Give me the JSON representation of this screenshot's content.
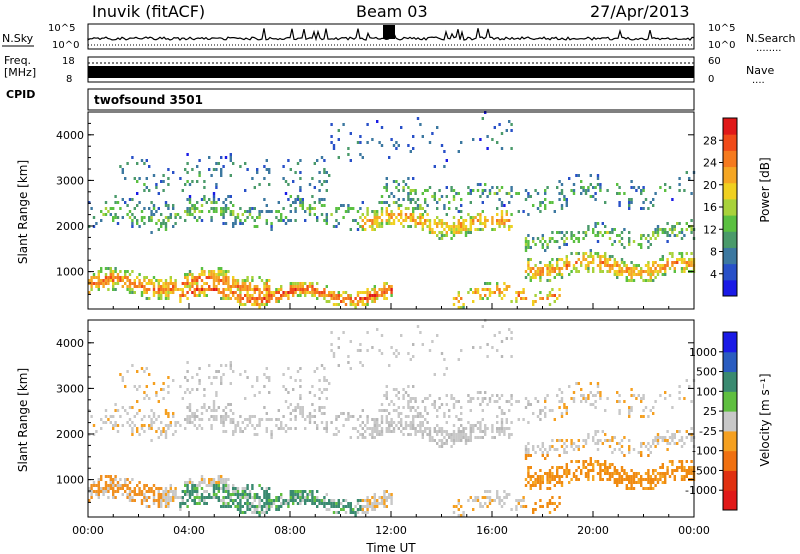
{
  "header": {
    "station": "Inuvik (fitACF)",
    "beam": "Beam 03",
    "date": "27/Apr/2013"
  },
  "side_labels": {
    "nsky": "N.Sky",
    "freq_line1": "Freq.",
    "freq_line2": "[MHz]",
    "cpid": "CPID",
    "nsearch": "N.Search",
    "nave": "Nave",
    "nsearch_dots": "........",
    "nave_dots": "....",
    "program": "twofsound 3501"
  },
  "chart_data": [
    {
      "type": "line",
      "name": "noise-panel",
      "left_ticks": [
        "10^5",
        "10^0"
      ],
      "right_ticks": [
        "10^5",
        "10^0"
      ]
    },
    {
      "type": "line",
      "name": "freq-panel",
      "left_ticks": [
        "18",
        "8"
      ],
      "right_ticks": [
        "60",
        "0"
      ]
    },
    {
      "type": "heatmap",
      "name": "power-panel",
      "ylabel": "Slant Range [km]",
      "yticks": [
        "1000",
        "2000",
        "3000",
        "4000"
      ],
      "ylim": [
        180,
        4500
      ],
      "colorbar": {
        "label": "Power [dB]",
        "ticks": [
          "4",
          "8",
          "12",
          "16",
          "20",
          "24",
          "28"
        ],
        "colors": [
          "#1a1ae6",
          "#2850c8",
          "#3c78a0",
          "#4a9a6a",
          "#5ac040",
          "#a8d23a",
          "#f0d020",
          "#f5a623",
          "#f57a1e",
          "#f04a18",
          "#e01818"
        ]
      }
    },
    {
      "type": "heatmap",
      "name": "velocity-panel",
      "ylabel": "Slant Range [km]",
      "yticks": [
        "1000",
        "2000",
        "3000",
        "4000"
      ],
      "ylim": [
        180,
        4500
      ],
      "xlabel": "Time UT",
      "xticks": [
        "00:00",
        "04:00",
        "08:00",
        "12:00",
        "16:00",
        "20:00",
        "00:00"
      ],
      "colorbar": {
        "label": "Velocity [m s⁻¹]",
        "ticks": [
          "1000",
          "500",
          "100",
          "25",
          "-25",
          "-100",
          "-500",
          "-1000"
        ],
        "colors": [
          "#1a1ae6",
          "#2a5cc0",
          "#3a8a70",
          "#5fbf3f",
          "#c8c8c8",
          "#f5a020",
          "#f07010",
          "#e03010",
          "#e01818"
        ]
      }
    }
  ]
}
